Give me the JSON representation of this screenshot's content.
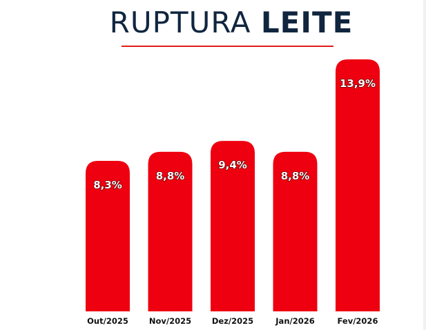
{
  "header": {
    "title_light": "RUPTURA",
    "title_bold": "LEITE"
  },
  "colors": {
    "bar": "#ee0010",
    "title": "#10263f",
    "rule": "#e01a1a",
    "label_text": "#ffffff",
    "category_text": "#111111"
  },
  "chart_data": {
    "type": "bar",
    "title": "RUPTURA LEITE",
    "categories": [
      "Out/2025",
      "Nov/2025",
      "Dez/2025",
      "Jan/2026",
      "Fev/2026"
    ],
    "values": [
      8.3,
      8.8,
      9.4,
      8.8,
      13.9
    ],
    "value_labels": [
      "8,3%",
      "8,8%",
      "9,4%",
      "8,8%",
      "13,9%"
    ],
    "unit": "%",
    "xlabel": "",
    "ylabel": "",
    "grid": false,
    "legend": "none",
    "ylim": [
      0,
      13.9
    ]
  }
}
